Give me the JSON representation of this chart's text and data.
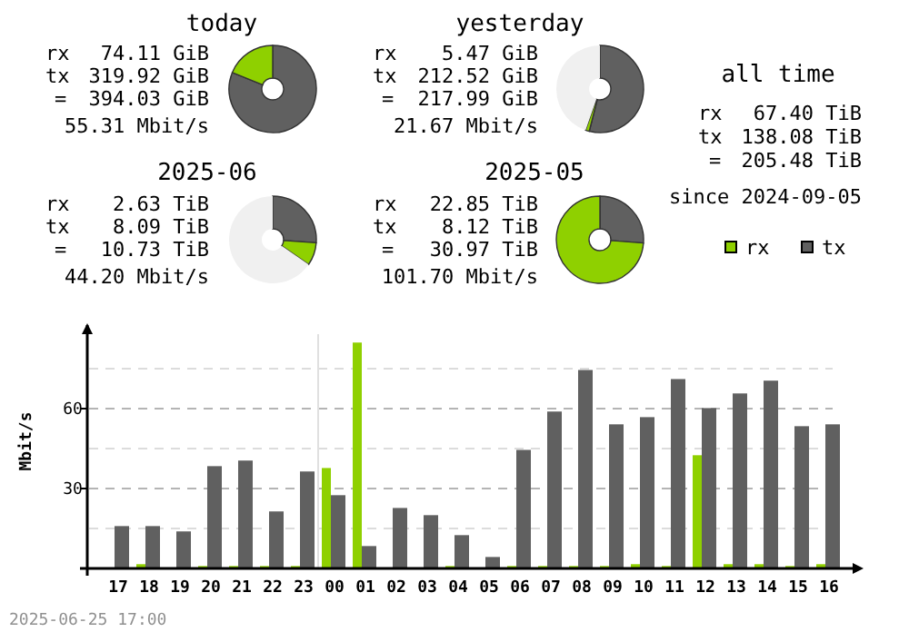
{
  "chart_data": [
    {
      "type": "donut",
      "title": "today",
      "categories": [
        null,
        null
      ],
      "values": [
        81.19,
        18.81
      ],
      "colors": [
        "#606060",
        "#8fd000"
      ],
      "annotations": [
        "rx 74.11 GiB",
        "tx 319.92 GiB",
        "= 394.03 GiB",
        "55.31 Mbit/s"
      ]
    },
    {
      "type": "donut",
      "title": "yesterday",
      "categories": [
        null,
        null,
        null
      ],
      "values": [
        53.94,
        1.39,
        44.67
      ],
      "colors": [
        "#606060",
        "#8fd000",
        "#f0f0f0"
      ],
      "annotations": [
        "rx 5.47 GiB",
        "tx 212.52 GiB",
        "= 217.99 GiB",
        "21.67 Mbit/s"
      ]
    },
    {
      "type": "donut",
      "title": "2025-06",
      "categories": [
        null,
        null,
        null
      ],
      "values": [
        26.12,
        8.49,
        65.39
      ],
      "colors": [
        "#606060",
        "#8fd000",
        "#f0f0f0"
      ],
      "annotations": [
        "rx 2.63 TiB",
        "tx 8.09 TiB",
        "= 10.73 TiB",
        "44.20 Mbit/s"
      ]
    },
    {
      "type": "donut",
      "title": "2025-05",
      "categories": [
        null,
        null
      ],
      "values": [
        26.22,
        73.78
      ],
      "colors": [
        "#606060",
        "#8fd000"
      ],
      "annotations": [
        "rx 22.85 TiB",
        "tx 8.12 TiB",
        "= 30.97 TiB",
        "101.70 Mbit/s"
      ]
    },
    {
      "type": "other",
      "title": "all time",
      "annotations": [
        "rx 67.40 TiB",
        "tx 138.08 TiB",
        "= 205.48 TiB",
        "since 2024-09-05"
      ]
    },
    {
      "type": "bar",
      "categories": [
        "17",
        "18",
        "19",
        "20",
        "21",
        "22",
        "23",
        "00",
        "01",
        "02",
        "03",
        "04",
        "05",
        "06",
        "07",
        "08",
        "09",
        "10",
        "11",
        "12",
        "13",
        "14",
        "15",
        "16"
      ],
      "series": [
        {
          "name": "rx",
          "color": "#8fd000",
          "values": [
            0,
            1.6,
            0,
            0.9,
            0.9,
            0.9,
            0.9,
            37.7,
            84.8,
            0,
            0,
            0.9,
            0,
            0.9,
            0.9,
            0.9,
            0.9,
            1.6,
            0.9,
            42.5,
            1.6,
            1.6,
            0.9,
            1.6
          ]
        },
        {
          "name": "tx",
          "color": "#606060",
          "values": [
            15.9,
            15.9,
            13.9,
            38.4,
            40.5,
            21.4,
            36.4,
            27.5,
            8.4,
            22.7,
            20,
            12.5,
            4.3,
            44.5,
            58.9,
            74.5,
            54.1,
            56.8,
            71.1,
            60.2,
            65.7,
            70.5,
            53.4,
            54.1
          ]
        }
      ],
      "ylabel": "Mbit/s",
      "ylim": [
        0,
        90
      ],
      "yticks": [
        {
          "value": 0,
          "label": null
        },
        {
          "value": 15,
          "label": null
        },
        30,
        {
          "value": 45,
          "label": null
        },
        60,
        {
          "value": 75,
          "label": null
        }
      ],
      "grid": "y",
      "legend": "top right",
      "ref_lines": [
        {
          "axis": "x",
          "value": "00",
          "color": "#e0e0e0"
        }
      ],
      "annotations": [
        "2025-06-25 17:00"
      ]
    }
  ]
}
